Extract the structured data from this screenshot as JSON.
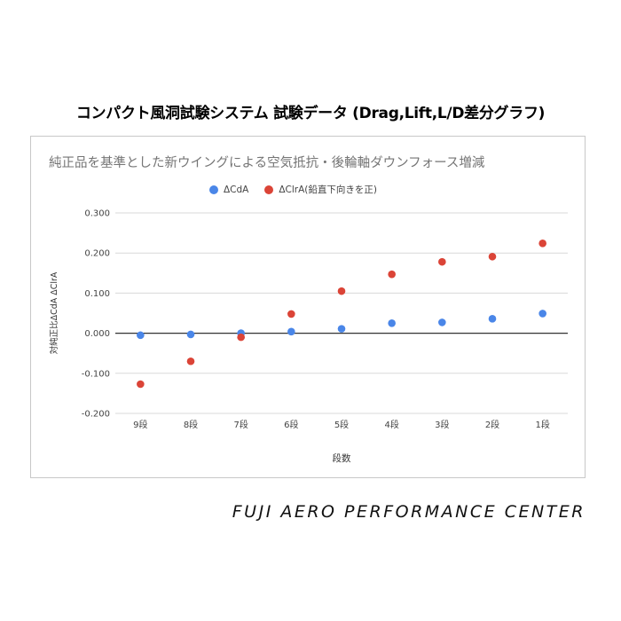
{
  "page_title": "コンパクト風洞試験システム 試験データ (Drag,Lift,L/D差分グラフ)",
  "footer": "FUJI AERO PERFORMANCE CENTER",
  "chart_data": {
    "type": "scatter",
    "title": "純正品を基準とした新ウイングによる空気抵抗・後輪軸ダウンフォース増減",
    "xlabel": "段数",
    "ylabel": "対純正比ΔCdA ΔClrA",
    "categories": [
      "9段",
      "8段",
      "7段",
      "6段",
      "5段",
      "4段",
      "3段",
      "2段",
      "1段"
    ],
    "ylim": [
      -0.2,
      0.3
    ],
    "yticks": [
      "0.300",
      "0.200",
      "0.100",
      "0.000",
      "-0.100",
      "-0.200"
    ],
    "legend_position": "top",
    "series": [
      {
        "name": "ΔCdA",
        "color": "#4a86e8",
        "values": [
          -0.005,
          -0.003,
          0.0,
          0.004,
          0.011,
          0.025,
          0.027,
          0.036,
          0.049
        ]
      },
      {
        "name": "ΔClrA(鉛直下向きを正)",
        "color": "#db4437",
        "values": [
          -0.127,
          -0.07,
          -0.01,
          0.048,
          0.105,
          0.147,
          0.178,
          0.191,
          0.224
        ]
      }
    ]
  }
}
